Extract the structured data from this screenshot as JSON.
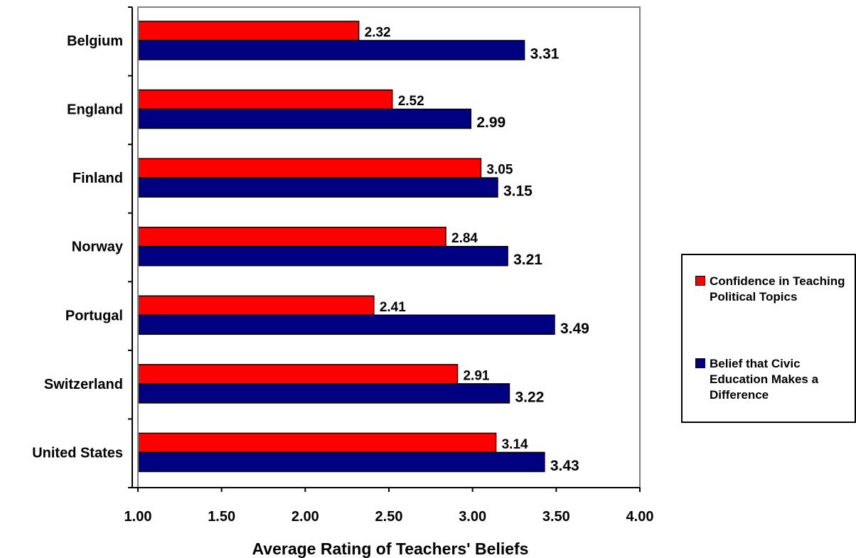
{
  "chart_data": {
    "type": "bar",
    "orientation": "horizontal",
    "categories": [
      "Belgium",
      "England",
      "Finland",
      "Norway",
      "Portugal",
      "Switzerland",
      "United States"
    ],
    "series": [
      {
        "name": "Confidence in Teaching Political Topics",
        "color": "#ff0000",
        "values": [
          2.32,
          2.52,
          3.05,
          2.84,
          2.41,
          2.91,
          3.14
        ]
      },
      {
        "name": "Belief that Civic Education Makes a Difference",
        "color": "#000080",
        "values": [
          3.31,
          2.99,
          3.15,
          3.21,
          3.49,
          3.22,
          3.43
        ]
      }
    ],
    "xlabel": "Average Rating of Teachers' Beliefs",
    "xlim": [
      1.0,
      4.0
    ],
    "xticks": [
      "1.00",
      "1.50",
      "2.00",
      "2.50",
      "3.00",
      "3.50",
      "4.00"
    ],
    "grid": false,
    "legend_position": "right"
  }
}
